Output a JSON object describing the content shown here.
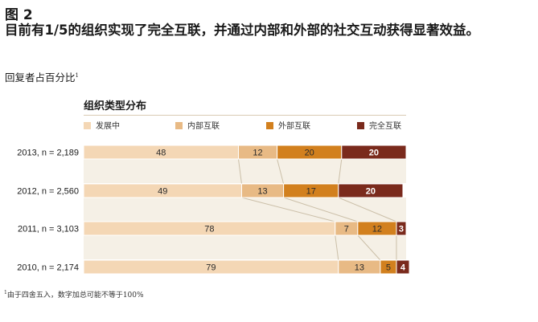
{
  "figure": {
    "label": "图 2",
    "title": "目前有1/5的组织实现了完全互联，并通过内部和外部的社交互动获得显著效益。",
    "subtitle": "回复者占百分比",
    "subtitle_note_mark": "1",
    "footnote_mark": "1",
    "footnote": "由于四舍五入，数字加总可能不等于100%"
  },
  "chart_data": {
    "type": "bar",
    "orientation": "horizontal",
    "stacked": true,
    "title": "组织类型分布",
    "legend_position": "top",
    "categories": [
      "2013, n = 2,189",
      "2012, n = 2,560",
      "2011, n = 3,103",
      "2010, n = 2,174"
    ],
    "series": [
      {
        "name": "发展中",
        "color": "#f4d7b5",
        "text_color": "#2a2a2a",
        "values": [
          48,
          49,
          78,
          79
        ]
      },
      {
        "name": "内部互联",
        "color": "#e8ba85",
        "text_color": "#2a2a2a",
        "values": [
          12,
          13,
          7,
          13
        ]
      },
      {
        "name": "外部互联",
        "color": "#d2801e",
        "text_color": "#2a2a2a",
        "values": [
          20,
          17,
          12,
          5
        ]
      },
      {
        "name": "完全互联",
        "color": "#7a2a1c",
        "text_color": "#ffffff",
        "values": [
          20,
          20,
          3,
          4
        ]
      }
    ],
    "connector_color": "#cbbfa8",
    "band_color": "#f5f0e6"
  }
}
